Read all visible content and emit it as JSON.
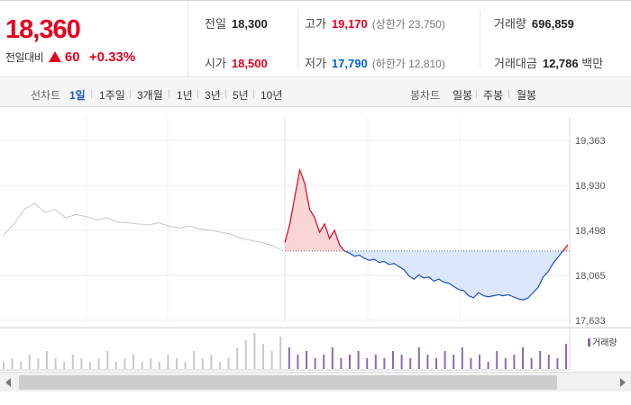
{
  "summary": {
    "current_price": "18,360",
    "change_label": "전일대비",
    "change_value": "60",
    "change_rate": "+0.33%",
    "prev_close_label": "전일",
    "prev_close": "18,300",
    "open_label": "시가",
    "open": "18,500",
    "high_label": "고가",
    "high": "19,170",
    "upper_limit": "(상한가 23,750)",
    "low_label": "저가",
    "low": "17,790",
    "lower_limit": "(하한가 12,810)",
    "volume_label": "거래량",
    "volume": "696,859",
    "amount_label": "거래대금",
    "amount": "12,786",
    "amount_unit": "백만",
    "colors": {
      "up": "#e4001f",
      "down": "#0060d6"
    }
  },
  "tabs": {
    "line_label": "선차트",
    "line": [
      "1일",
      "1주일",
      "3개월",
      "1년",
      "3년",
      "5년",
      "10년"
    ],
    "candle_label": "봉차트",
    "candle": [
      "일봉",
      "주봉",
      "월봉"
    ]
  },
  "chart_data": {
    "type": "line",
    "yticks": [
      "19,363",
      "18,930",
      "18,498",
      "18,065",
      "17,633"
    ],
    "ylim": [
      17633,
      19363
    ],
    "prev_close": 18300,
    "prev_day_series": [
      18450,
      18560,
      18700,
      18760,
      18670,
      18700,
      18620,
      18650,
      18630,
      18600,
      18620,
      18580,
      18570,
      18560,
      18550,
      18570,
      18540,
      18520,
      18540,
      18510,
      18500,
      18480,
      18460,
      18420,
      18400,
      18380,
      18350,
      18300
    ],
    "today_series": [
      18380,
      18560,
      18820,
      19080,
      18950,
      18700,
      18620,
      18480,
      18560,
      18420,
      18500,
      18360,
      18300,
      18280,
      18250,
      18260,
      18230,
      18210,
      18220,
      18190,
      18200,
      18170,
      18180,
      18150,
      18120,
      18060,
      18030,
      18070,
      18040,
      18050,
      18010,
      18030,
      18000,
      17990,
      17960,
      17930,
      17920,
      17870,
      17850,
      17900,
      17870,
      17860,
      17870,
      17880,
      17870,
      17880,
      17860,
      17840,
      17830,
      17850,
      17900,
      17950,
      18050,
      18100,
      18180,
      18240,
      18300,
      18360
    ],
    "volume": [
      2,
      3,
      2,
      4,
      3,
      5,
      3,
      2,
      4,
      3,
      2,
      3,
      5,
      2,
      3,
      4,
      2,
      3,
      2,
      4,
      3,
      2,
      5,
      3,
      4,
      2,
      3,
      6,
      8,
      10,
      7,
      5,
      9,
      6,
      4,
      5,
      3,
      4,
      6,
      3,
      4,
      5,
      3,
      4,
      3,
      5,
      4,
      3,
      6,
      4,
      3,
      5,
      4,
      6,
      3,
      4,
      2,
      5,
      3,
      4,
      6,
      3,
      5,
      4,
      3,
      7
    ],
    "volume_legend": "거래량",
    "grid": true,
    "colors": {
      "prev_line": "#c8c8c8",
      "up_line": "#e4001f",
      "down_line": "#1b4fc4",
      "up_fill": "#fbd6d6",
      "down_fill": "#dbe7fb",
      "volume_prev": "#c9c9c9",
      "volume_today": "#8c6bb1"
    }
  }
}
